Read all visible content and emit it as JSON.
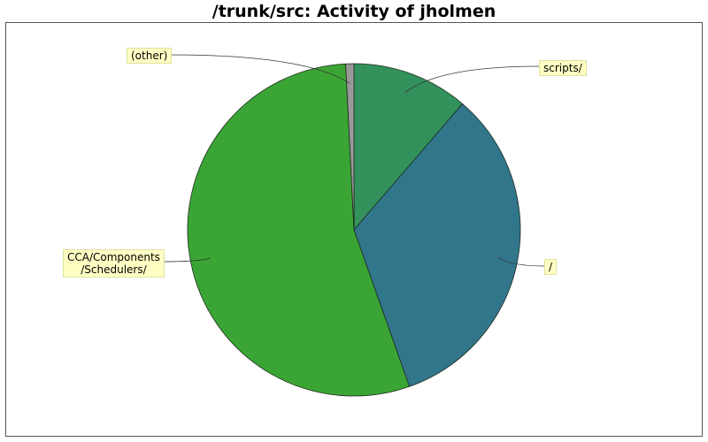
{
  "chart_data": {
    "type": "pie",
    "title": "/trunk/src: Activity of jholmen",
    "slices": [
      {
        "label": "scripts/",
        "value": 11.3,
        "color": "#33925c"
      },
      {
        "label": "/",
        "value": 33.3,
        "color": "#32768c"
      },
      {
        "label": "CCA/Components\n/Schedulers/",
        "value": 54.6,
        "color": "#3aa535"
      },
      {
        "label": "(other)",
        "value": 0.8,
        "color": "#999999"
      }
    ],
    "legend": "none"
  }
}
